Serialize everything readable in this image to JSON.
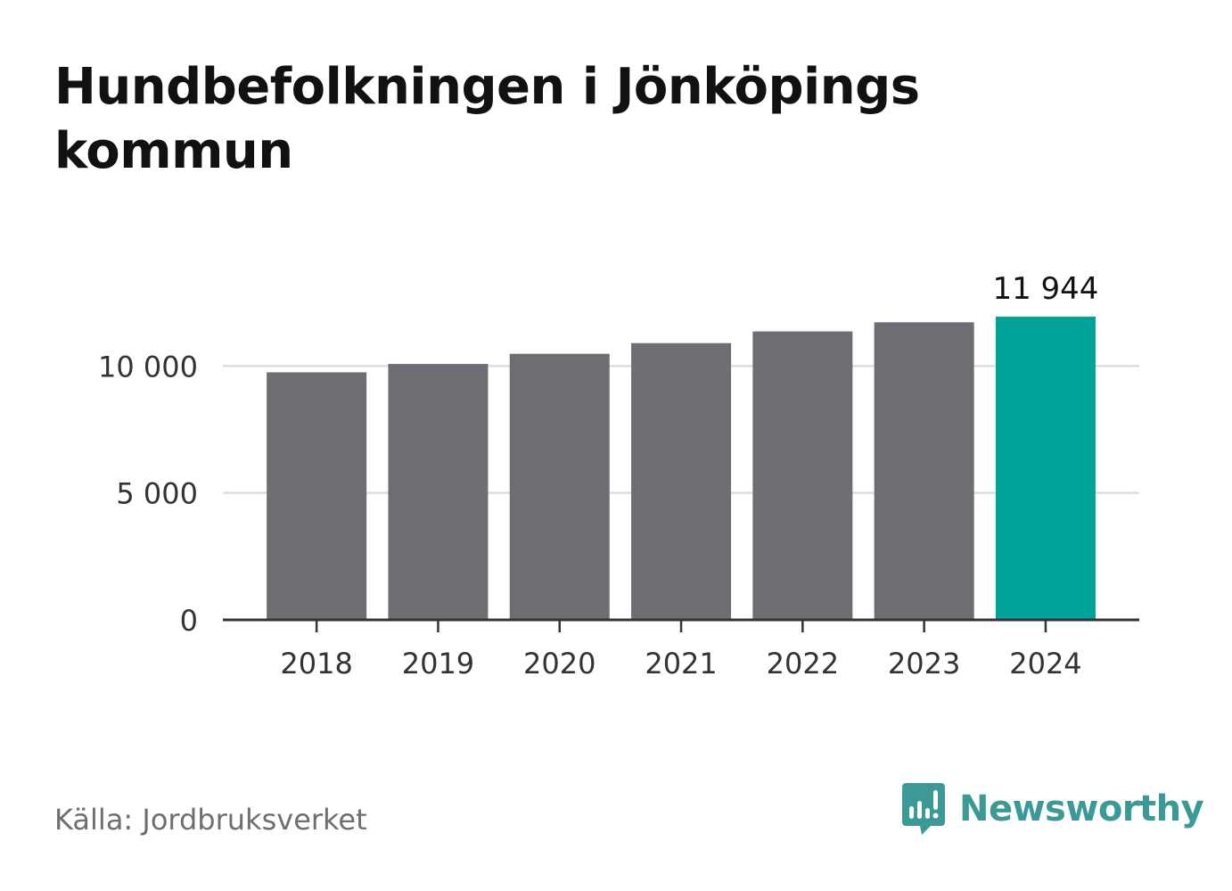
{
  "title": "Hundbefolkningen i Jönköpings kommun",
  "source": "Källa: Jordbruksverket",
  "brand": {
    "name": "Newsworthy",
    "icon": "newsworthy-chart-bubble-icon"
  },
  "colors": {
    "bar": "#6e6d73",
    "highlight": "#00a39a",
    "grid": "#dddddd",
    "axis": "#333333",
    "text": "#333333",
    "brand": "#3b9a95"
  },
  "chart_data": {
    "type": "bar",
    "categories": [
      "2018",
      "2019",
      "2020",
      "2021",
      "2022",
      "2023",
      "2024"
    ],
    "values": [
      9750,
      10080,
      10480,
      10900,
      11360,
      11720,
      11944
    ],
    "highlight_index": 6,
    "data_labels": [
      {
        "index": 6,
        "text": "11 944"
      }
    ],
    "y_ticks": [
      {
        "value": 0,
        "label": "0"
      },
      {
        "value": 5000,
        "label": "5 000"
      },
      {
        "value": 10000,
        "label": "10 000"
      }
    ],
    "ylim": [
      0,
      11944
    ],
    "grid": true,
    "legend": "none",
    "xlabel": "",
    "ylabel": ""
  }
}
